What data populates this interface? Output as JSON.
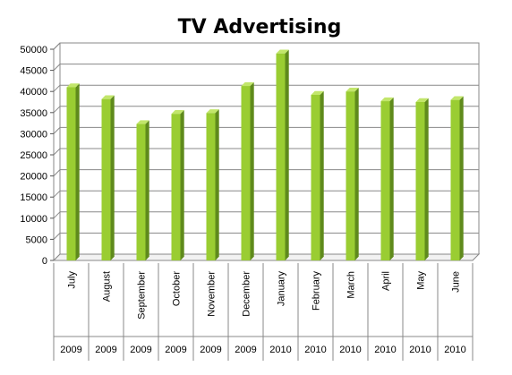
{
  "chart_data": {
    "type": "bar",
    "title": "TV Advertising",
    "categories": [
      "July",
      "August",
      "September",
      "October",
      "November",
      "December",
      "January",
      "February",
      "March",
      "April",
      "May",
      "June"
    ],
    "years": [
      "2009",
      "2009",
      "2009",
      "2009",
      "2009",
      "2009",
      "2010",
      "2010",
      "2010",
      "2010",
      "2010",
      "2010"
    ],
    "values": [
      41000,
      38200,
      32300,
      34700,
      34900,
      41300,
      49000,
      39200,
      40000,
      37700,
      37500,
      38000
    ],
    "yticks": [
      "0",
      "5000",
      "10000",
      "15000",
      "20000",
      "25000",
      "30000",
      "35000",
      "40000",
      "45000",
      "50000"
    ],
    "ylim": [
      0,
      50000
    ],
    "grid": true,
    "bar_color": "#9acd32",
    "bar_side_color": "#5f8a1c",
    "bar_top_color": "#c2e66b"
  }
}
